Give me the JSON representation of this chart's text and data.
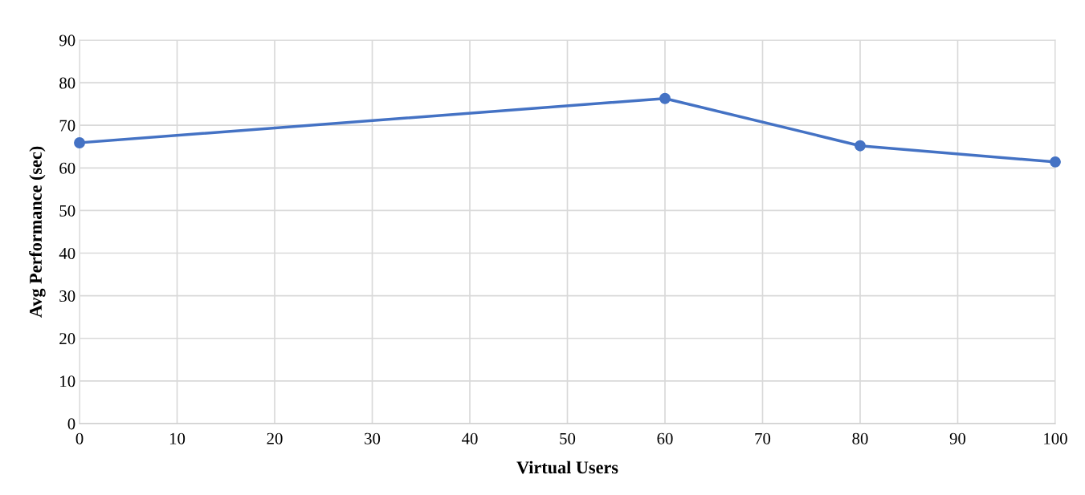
{
  "chart_data": {
    "type": "line",
    "xlabel": "Virtual Users",
    "ylabel": "Avg Performance (sec)",
    "x": [
      0,
      60,
      80,
      100
    ],
    "series": [
      {
        "color": "#4472c4",
        "values": [
          65.9,
          76.3,
          65.2,
          61.4
        ]
      }
    ],
    "xlim": [
      0,
      100
    ],
    "xticks": [
      0,
      10,
      20,
      30,
      40,
      50,
      60,
      70,
      80,
      90,
      100
    ],
    "ylim": [
      0,
      90
    ],
    "yticks": [
      0,
      10,
      20,
      30,
      40,
      50,
      60,
      70,
      80,
      90
    ],
    "grid": true,
    "marker": "circle",
    "line_style": "solid"
  }
}
